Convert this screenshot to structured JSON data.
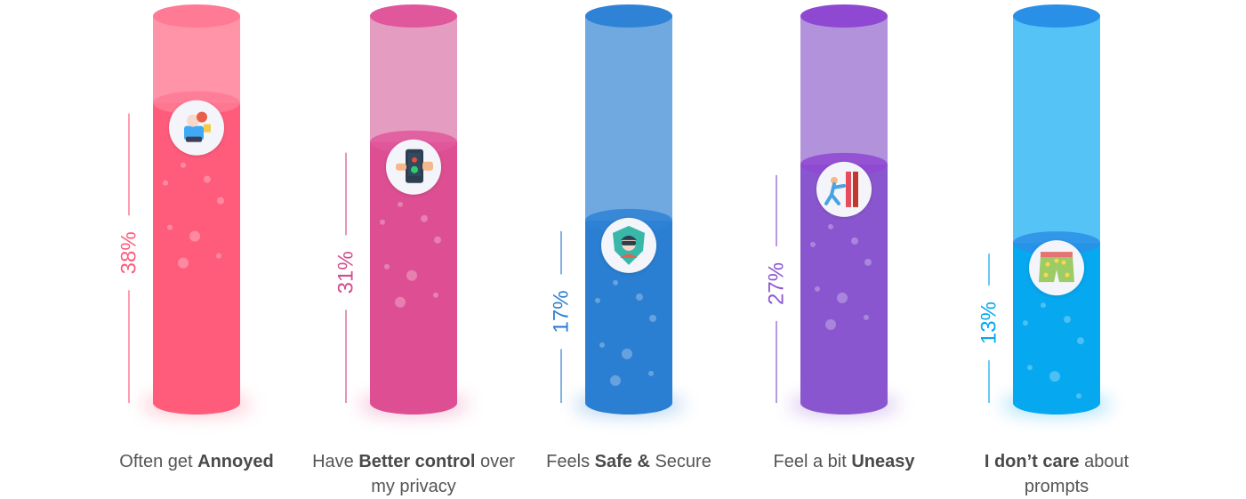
{
  "chart_data": {
    "type": "bar",
    "title": "",
    "xlabel": "",
    "ylabel": "",
    "ylim": [
      0,
      100
    ],
    "grid": false,
    "legend": "none",
    "categories": [
      "Often get Annoyed",
      "Have Better control over my privacy",
      "Feels Safe & Secure",
      "Feel a bit Uneasy",
      "I don’t care about prompts"
    ],
    "values": [
      38,
      31,
      17,
      27,
      13
    ],
    "value_labels": [
      "38%",
      "31%",
      "17%",
      "27%",
      "13%"
    ],
    "caption_parts": [
      {
        "pre": "Often get ",
        "bold": "Annoyed",
        "post": ""
      },
      {
        "pre": "Have ",
        "bold": "Better control",
        "post": " over my privacy"
      },
      {
        "pre": "Feels ",
        "bold": "Safe &",
        "post": " Secure"
      },
      {
        "pre": "Feel a bit ",
        "bold": "Uneasy",
        "post": ""
      },
      {
        "pre": "",
        "bold": "I don’t care",
        "post": " about prompts"
      }
    ],
    "icons": [
      "annoyed-person-icon",
      "phone-control-icon",
      "shield-security-icon",
      "uneasy-person-icon",
      "shorts-icon"
    ],
    "colors": {
      "fill": [
        "#ff5c7c",
        "#dd4f92",
        "#2a7fd2",
        "#8a56cf",
        "#06a8f0"
      ],
      "tube": [
        "#ff93a8",
        "#e59cc1",
        "#6fa9df",
        "#b392dc",
        "#56c3f6"
      ],
      "top": [
        "#ff7a94",
        "#e0579b",
        "#2f83d6",
        "#8f48d2",
        "#2a8fe6"
      ],
      "label": [
        "#ff5c7c",
        "#d04f8e",
        "#2a7fd2",
        "#8a56cf",
        "#06a8f0"
      ]
    }
  }
}
